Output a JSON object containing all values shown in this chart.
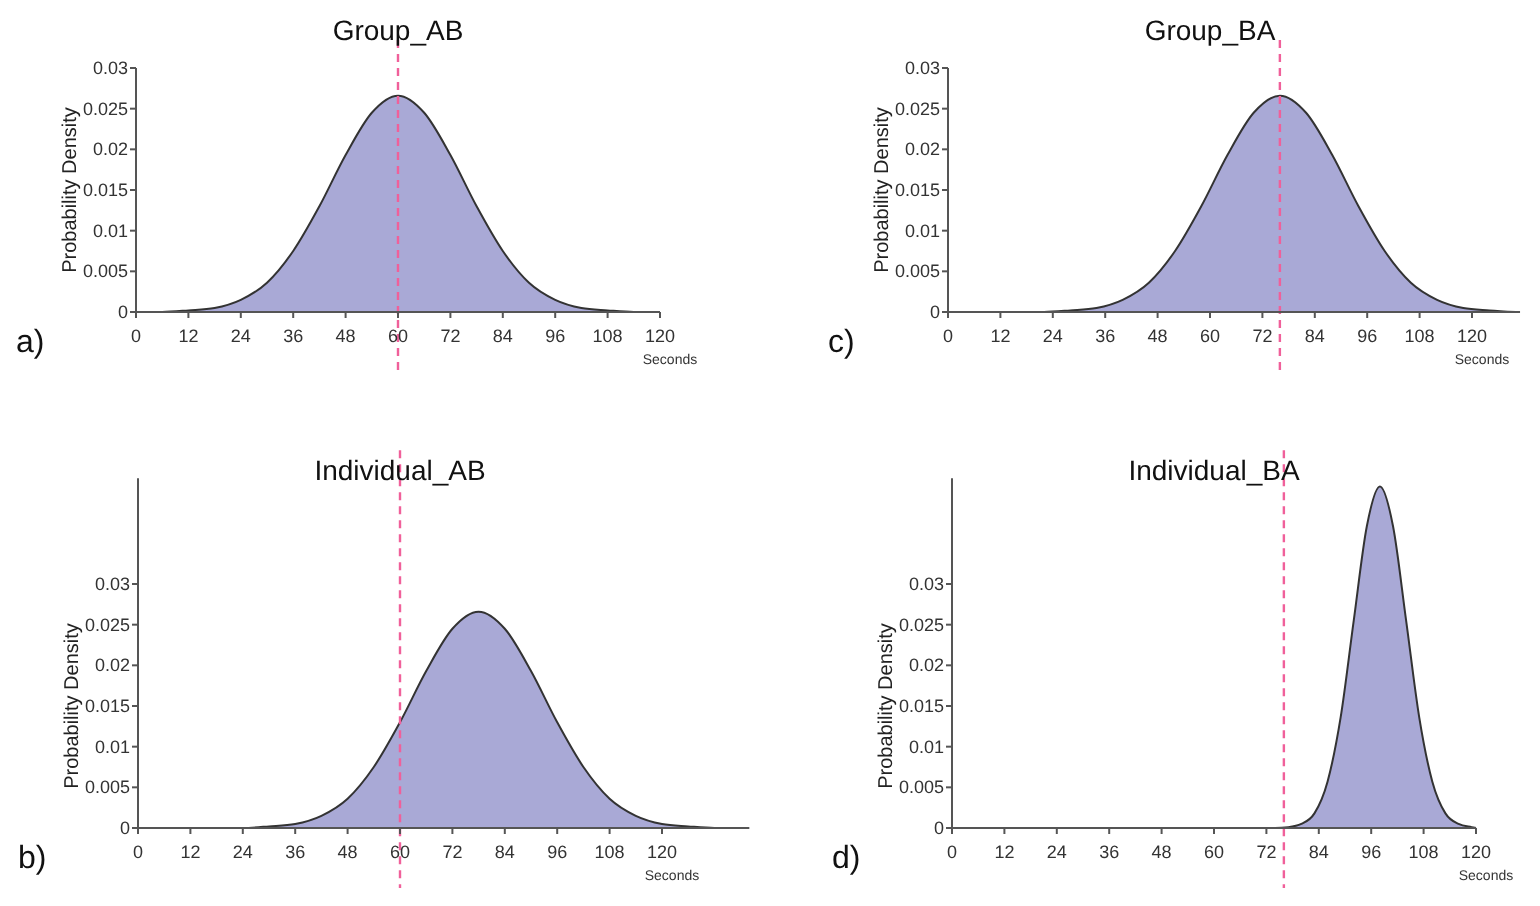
{
  "chart_data": [
    {
      "type": "area",
      "title": "Group_AB",
      "xlabel": "Seconds",
      "ylabel": "Probability Density",
      "annotations": [
        "a)"
      ],
      "x": [
        0,
        6,
        12,
        18,
        24,
        30,
        36,
        42,
        48,
        54,
        60,
        66,
        72,
        78,
        84,
        90,
        96,
        102,
        108,
        114,
        120
      ],
      "series": [
        {
          "color": "#a9a9d6",
          "values": [
            0,
            0,
            0.0002,
            0.0005,
            0.0015,
            0.0036,
            0.0075,
            0.013,
            0.0193,
            0.0245,
            0.0266,
            0.0245,
            0.0193,
            0.013,
            0.0075,
            0.0036,
            0.0015,
            0.0005,
            0.0002,
            0,
            0
          ]
        }
      ],
      "xlim": [
        0,
        120
      ],
      "xticks": [
        0,
        12,
        24,
        36,
        48,
        60,
        72,
        84,
        96,
        108,
        120
      ],
      "ylim": [
        0,
        0.03
      ],
      "yticks": [
        0,
        0.005,
        0.01,
        0.015,
        0.02,
        0.025,
        0.03
      ],
      "ref_lines": [
        {
          "axis": "x",
          "value": 60,
          "color": "#f0609a",
          "line_style": "dashed"
        }
      ],
      "grid": false
    },
    {
      "type": "area",
      "title": "Individual_AB",
      "xlabel": "Seconds",
      "ylabel": "Probability Density",
      "annotations": [
        "b)"
      ],
      "x": [
        0,
        18,
        24,
        30,
        36,
        42,
        48,
        54,
        60,
        66,
        72,
        78,
        84,
        90,
        96,
        102,
        108,
        114,
        120,
        126,
        132,
        138
      ],
      "series": [
        {
          "color": "#a9a9d6",
          "values": [
            0,
            0,
            0,
            0.0002,
            0.0005,
            0.0015,
            0.0036,
            0.0075,
            0.013,
            0.0193,
            0.0245,
            0.0266,
            0.0245,
            0.0193,
            0.013,
            0.0075,
            0.0036,
            0.0015,
            0.0005,
            0.0002,
            0,
            0
          ]
        }
      ],
      "xlim": [
        0,
        140
      ],
      "xticks": [
        0,
        12,
        24,
        36,
        48,
        60,
        72,
        84,
        96,
        108,
        120
      ],
      "ylim": [
        0,
        0.043
      ],
      "yticks": [
        0,
        0.005,
        0.01,
        0.015,
        0.02,
        0.025,
        0.03
      ],
      "ref_lines": [
        {
          "axis": "x",
          "value": 60,
          "color": "#f0609a",
          "line_style": "dashed"
        }
      ],
      "grid": false
    },
    {
      "type": "area",
      "title": "Group_BA",
      "xlabel": "Seconds",
      "ylabel": "Probability Density",
      "annotations": [
        "c)"
      ],
      "x": [
        0,
        16,
        22,
        28,
        34,
        40,
        46,
        52,
        58,
        64,
        70,
        76,
        82,
        88,
        94,
        100,
        106,
        112,
        118,
        124,
        130
      ],
      "series": [
        {
          "color": "#a9a9d6",
          "values": [
            0,
            0,
            0,
            0.0002,
            0.0005,
            0.0015,
            0.0036,
            0.0075,
            0.013,
            0.0193,
            0.0245,
            0.0266,
            0.0245,
            0.0193,
            0.013,
            0.0075,
            0.0036,
            0.0015,
            0.0005,
            0.0002,
            0
          ]
        }
      ],
      "xlim": [
        0,
        131
      ],
      "xticks": [
        0,
        12,
        24,
        36,
        48,
        60,
        72,
        84,
        96,
        108,
        120
      ],
      "ylim": [
        0,
        0.03
      ],
      "yticks": [
        0,
        0.005,
        0.01,
        0.015,
        0.02,
        0.025,
        0.03
      ],
      "ref_lines": [
        {
          "axis": "x",
          "value": 76,
          "color": "#f0609a",
          "line_style": "dashed"
        }
      ],
      "grid": false
    },
    {
      "type": "area",
      "title": "Individual_BA",
      "xlabel": "Seconds",
      "ylabel": "Probability Density",
      "annotations": [
        "d)"
      ],
      "x": [
        0,
        74,
        77,
        80,
        83,
        86,
        89,
        92,
        95,
        98,
        101,
        104,
        107,
        110,
        113,
        116,
        119,
        120
      ],
      "series": [
        {
          "color": "#a9a9d6",
          "values": [
            0,
            0,
            0.0001,
            0.0005,
            0.0018,
            0.0057,
            0.0136,
            0.0255,
            0.0371,
            0.042,
            0.0371,
            0.0255,
            0.0136,
            0.0057,
            0.0018,
            0.0005,
            0.0001,
            0
          ]
        }
      ],
      "xlim": [
        0,
        120
      ],
      "xticks": [
        0,
        12,
        24,
        36,
        48,
        60,
        72,
        84,
        96,
        108,
        120
      ],
      "ylim": [
        0,
        0.043
      ],
      "yticks": [
        0,
        0.005,
        0.01,
        0.015,
        0.02,
        0.025,
        0.03
      ],
      "ref_lines": [
        {
          "axis": "x",
          "value": 76,
          "color": "#f0609a",
          "line_style": "dashed"
        }
      ],
      "grid": false
    }
  ]
}
